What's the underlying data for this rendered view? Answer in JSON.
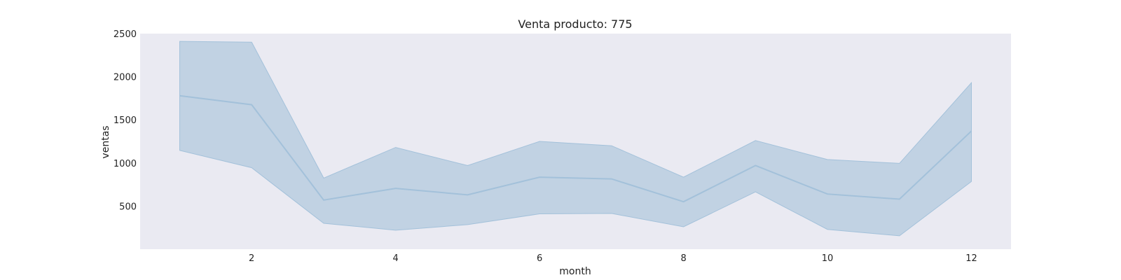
{
  "chart_data": {
    "type": "area",
    "title": "Venta producto: 775",
    "xlabel": "month",
    "ylabel": "ventas",
    "xlim": [
      0.45,
      12.55
    ],
    "ylim": [
      0,
      2500
    ],
    "x_ticks": [
      2,
      4,
      6,
      8,
      10,
      12
    ],
    "y_ticks": [
      500,
      1000,
      1500,
      2000,
      2500
    ],
    "grid": false,
    "x": [
      1,
      2,
      3,
      4,
      5,
      6,
      7,
      8,
      9,
      10,
      11,
      12
    ],
    "series": [
      {
        "values": [
          1780,
          1675,
          570,
          705,
          630,
          835,
          815,
          550,
          970,
          640,
          580,
          1370
        ],
        "ci_upper": [
          2410,
          2400,
          825,
          1180,
          970,
          1250,
          1200,
          835,
          1260,
          1040,
          995,
          1930
        ],
        "ci_lower": [
          1145,
          945,
          300,
          220,
          285,
          410,
          415,
          260,
          665,
          230,
          155,
          785
        ]
      }
    ],
    "colors": {
      "line": "#a3c1da",
      "band": "#c1d2e3",
      "plot_background": "#eaeaf2"
    }
  }
}
